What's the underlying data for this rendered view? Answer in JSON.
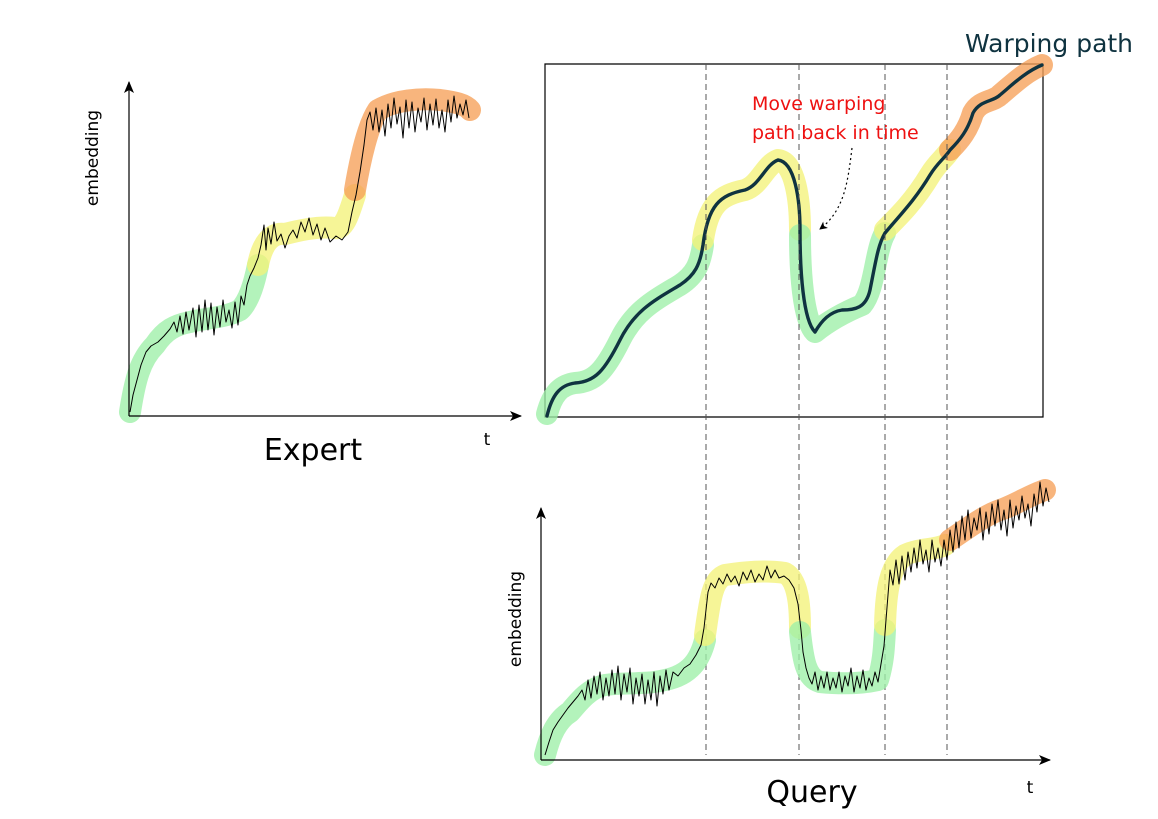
{
  "colors": {
    "phase_green": "#9ef0a8",
    "phase_yellow": "#f3f27a",
    "phase_orange": "#f6a058",
    "warping_path": "#0f3340",
    "note": "#ee1111"
  },
  "expert": {
    "ylabel": "embedding",
    "xlabel": "t",
    "caption": "Expert",
    "phases": [
      "green",
      "yellow",
      "orange"
    ]
  },
  "query": {
    "ylabel": "embedding",
    "xlabel": "t",
    "caption": "Query",
    "phases": [
      "green",
      "yellow",
      "green",
      "yellow",
      "orange"
    ]
  },
  "warping": {
    "title": "Warping path",
    "note_line1": "Move warping",
    "note_line2": "path back in time",
    "phases": [
      "green",
      "yellow",
      "green",
      "yellow",
      "orange"
    ]
  }
}
